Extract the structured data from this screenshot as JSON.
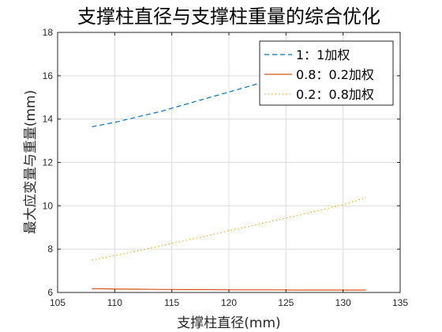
{
  "chart_data": {
    "type": "line",
    "title": "支撑柱直径与支撑柱重量的综合优化",
    "xlabel": "支撑柱直径(mm)",
    "ylabel": "最大应变量与重量(mm)",
    "xlim": [
      105,
      135
    ],
    "ylim": [
      6,
      18
    ],
    "xticks": [
      105,
      110,
      115,
      120,
      125,
      130,
      135
    ],
    "yticks": [
      6,
      8,
      10,
      12,
      14,
      16,
      18
    ],
    "grid": true,
    "legend_position": "top-right",
    "x": [
      108,
      110,
      112,
      114,
      116,
      118,
      120,
      122,
      124,
      126,
      128,
      130,
      132
    ],
    "series": [
      {
        "name": "1：1加权",
        "color": "#0072BD",
        "dash": "dashed",
        "values": [
          13.65,
          13.85,
          14.1,
          14.35,
          14.65,
          14.95,
          15.25,
          15.55,
          15.85,
          16.2,
          16.5,
          16.85,
          17.2
        ]
      },
      {
        "name": "0.8：0.2加权",
        "color": "#D95319",
        "dash": "solid",
        "values": [
          6.18,
          6.16,
          6.15,
          6.14,
          6.13,
          6.13,
          6.12,
          6.12,
          6.12,
          6.11,
          6.11,
          6.11,
          6.11
        ]
      },
      {
        "name": "0.2：0.8加权",
        "color": "#EDB120",
        "dash": "dotted",
        "values": [
          7.5,
          7.7,
          7.92,
          8.15,
          8.38,
          8.6,
          8.85,
          9.08,
          9.32,
          9.55,
          9.8,
          10.05,
          10.38
        ]
      }
    ]
  }
}
